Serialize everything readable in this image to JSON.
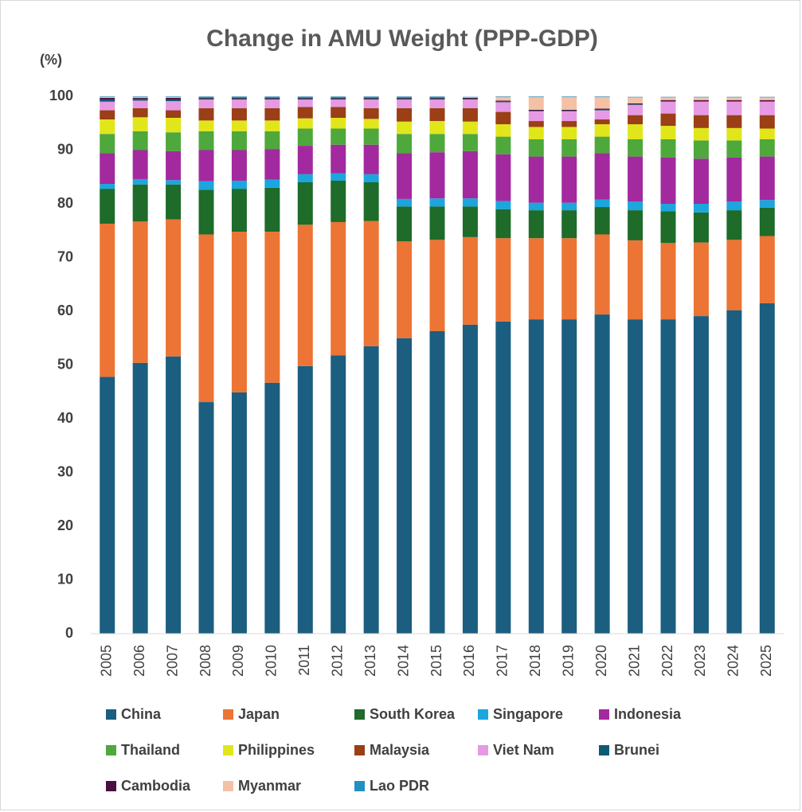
{
  "chart_data": {
    "type": "stacked_bar",
    "title": "Change in AMU Weight (PPP-GDP)",
    "y_label": "(%)",
    "categories": [
      "2005",
      "2006",
      "2007",
      "2008",
      "2009",
      "2010",
      "2011",
      "2012",
      "2013",
      "2014",
      "2015",
      "2016",
      "2017",
      "2018",
      "2019",
      "2020",
      "2021",
      "2022",
      "2023",
      "2024",
      "2025"
    ],
    "ylim": [
      0,
      100
    ],
    "yticks": [
      0,
      10,
      20,
      30,
      40,
      50,
      60,
      70,
      80,
      90,
      100
    ],
    "grid": false,
    "legend": "bottom",
    "series": [
      {
        "name": "China",
        "color": "#1b5e80",
        "values": [
          47.8,
          50.4,
          51.6,
          43.1,
          44.9,
          46.7,
          49.8,
          51.8,
          53.5,
          55.0,
          56.3,
          57.5,
          58.1,
          58.5,
          58.5,
          59.4,
          58.5,
          58.5,
          59.1,
          60.2,
          61.5
        ]
      },
      {
        "name": "Japan",
        "color": "#ec7434",
        "values": [
          28.5,
          26.3,
          25.5,
          31.2,
          29.9,
          28.1,
          26.3,
          24.8,
          23.3,
          18.0,
          17.0,
          16.3,
          15.5,
          15.1,
          15.1,
          14.9,
          14.7,
          14.2,
          13.7,
          13.1,
          12.5
        ]
      },
      {
        "name": "South Korea",
        "color": "#1e6b2a",
        "values": [
          6.5,
          6.9,
          6.5,
          8.3,
          8.0,
          8.2,
          7.9,
          7.7,
          7.2,
          6.5,
          6.2,
          5.7,
          5.4,
          5.2,
          5.2,
          5.1,
          5.6,
          5.9,
          5.6,
          5.5,
          5.3
        ]
      },
      {
        "name": "Singapore",
        "color": "#1ba6de",
        "values": [
          0.9,
          1.0,
          0.8,
          1.6,
          1.5,
          1.5,
          1.5,
          1.4,
          1.5,
          1.4,
          1.5,
          1.5,
          1.5,
          1.4,
          1.4,
          1.4,
          1.6,
          1.4,
          1.6,
          1.6,
          1.4
        ]
      },
      {
        "name": "Indonesia",
        "color": "#a22a9e",
        "values": [
          5.7,
          5.4,
          5.4,
          5.8,
          5.7,
          5.7,
          5.3,
          5.3,
          5.5,
          8.5,
          8.6,
          8.8,
          8.7,
          8.6,
          8.6,
          8.6,
          8.4,
          8.6,
          8.4,
          8.2,
          8.1
        ]
      },
      {
        "name": "Thailand",
        "color": "#4ea83c",
        "values": [
          3.6,
          3.5,
          3.5,
          3.5,
          3.5,
          3.3,
          3.2,
          3.0,
          3.0,
          3.6,
          3.4,
          3.2,
          3.3,
          3.2,
          3.2,
          3.1,
          3.2,
          3.4,
          3.4,
          3.2,
          3.2
        ]
      },
      {
        "name": "Philippines",
        "color": "#e1e61b",
        "values": [
          2.7,
          2.6,
          2.7,
          2.0,
          2.0,
          2.0,
          1.9,
          2.0,
          1.8,
          2.3,
          2.4,
          2.3,
          2.3,
          2.3,
          2.3,
          2.3,
          2.8,
          2.5,
          2.3,
          2.3,
          2.0
        ]
      },
      {
        "name": "Malaysia",
        "color": "#9a3f16",
        "values": [
          1.7,
          1.7,
          1.4,
          2.3,
          2.3,
          2.3,
          2.1,
          2.0,
          2.0,
          2.5,
          2.4,
          2.5,
          2.3,
          1.1,
          1.1,
          0.9,
          1.7,
          2.3,
          2.4,
          2.4,
          2.5
        ]
      },
      {
        "name": "Viet Nam",
        "color": "#e69ae3",
        "values": [
          1.6,
          1.4,
          1.7,
          1.6,
          1.6,
          1.6,
          1.4,
          1.4,
          1.6,
          1.6,
          1.6,
          1.6,
          1.8,
          1.8,
          1.8,
          1.7,
          1.9,
          2.2,
          2.5,
          2.5,
          2.5
        ]
      },
      {
        "name": "Brunei",
        "color": "#0f5a73",
        "values": [
          0.4,
          0.3,
          0.3,
          0.2,
          0.2,
          0.2,
          0.2,
          0.2,
          0.2,
          0.2,
          0.2,
          0.1,
          0.1,
          0.1,
          0.1,
          0.1,
          0.1,
          0.1,
          0.1,
          0.1,
          0.1
        ]
      },
      {
        "name": "Cambodia",
        "color": "#4a1040",
        "values": [
          0.3,
          0.2,
          0.3,
          0.2,
          0.2,
          0.2,
          0.2,
          0.2,
          0.2,
          0.2,
          0.2,
          0.2,
          0.2,
          0.2,
          0.2,
          0.2,
          0.2,
          0.2,
          0.2,
          0.2,
          0.2
        ]
      },
      {
        "name": "Myanmar",
        "color": "#f6c0a4",
        "values": [
          0.2,
          0.2,
          0.2,
          0.1,
          0.1,
          0.1,
          0.1,
          0.1,
          0.1,
          0.1,
          0.1,
          0.1,
          0.7,
          2.4,
          2.4,
          2.2,
          1.1,
          0.5,
          0.5,
          0.5,
          0.5
        ]
      },
      {
        "name": "Lao PDR",
        "color": "#2090c0",
        "values": [
          0.1,
          0.1,
          0.1,
          0.1,
          0.1,
          0.1,
          0.1,
          0.1,
          0.1,
          0.1,
          0.1,
          0.1,
          0.1,
          0.1,
          0.1,
          0.1,
          0.1,
          0.1,
          0.1,
          0.1,
          0.1
        ]
      }
    ]
  }
}
